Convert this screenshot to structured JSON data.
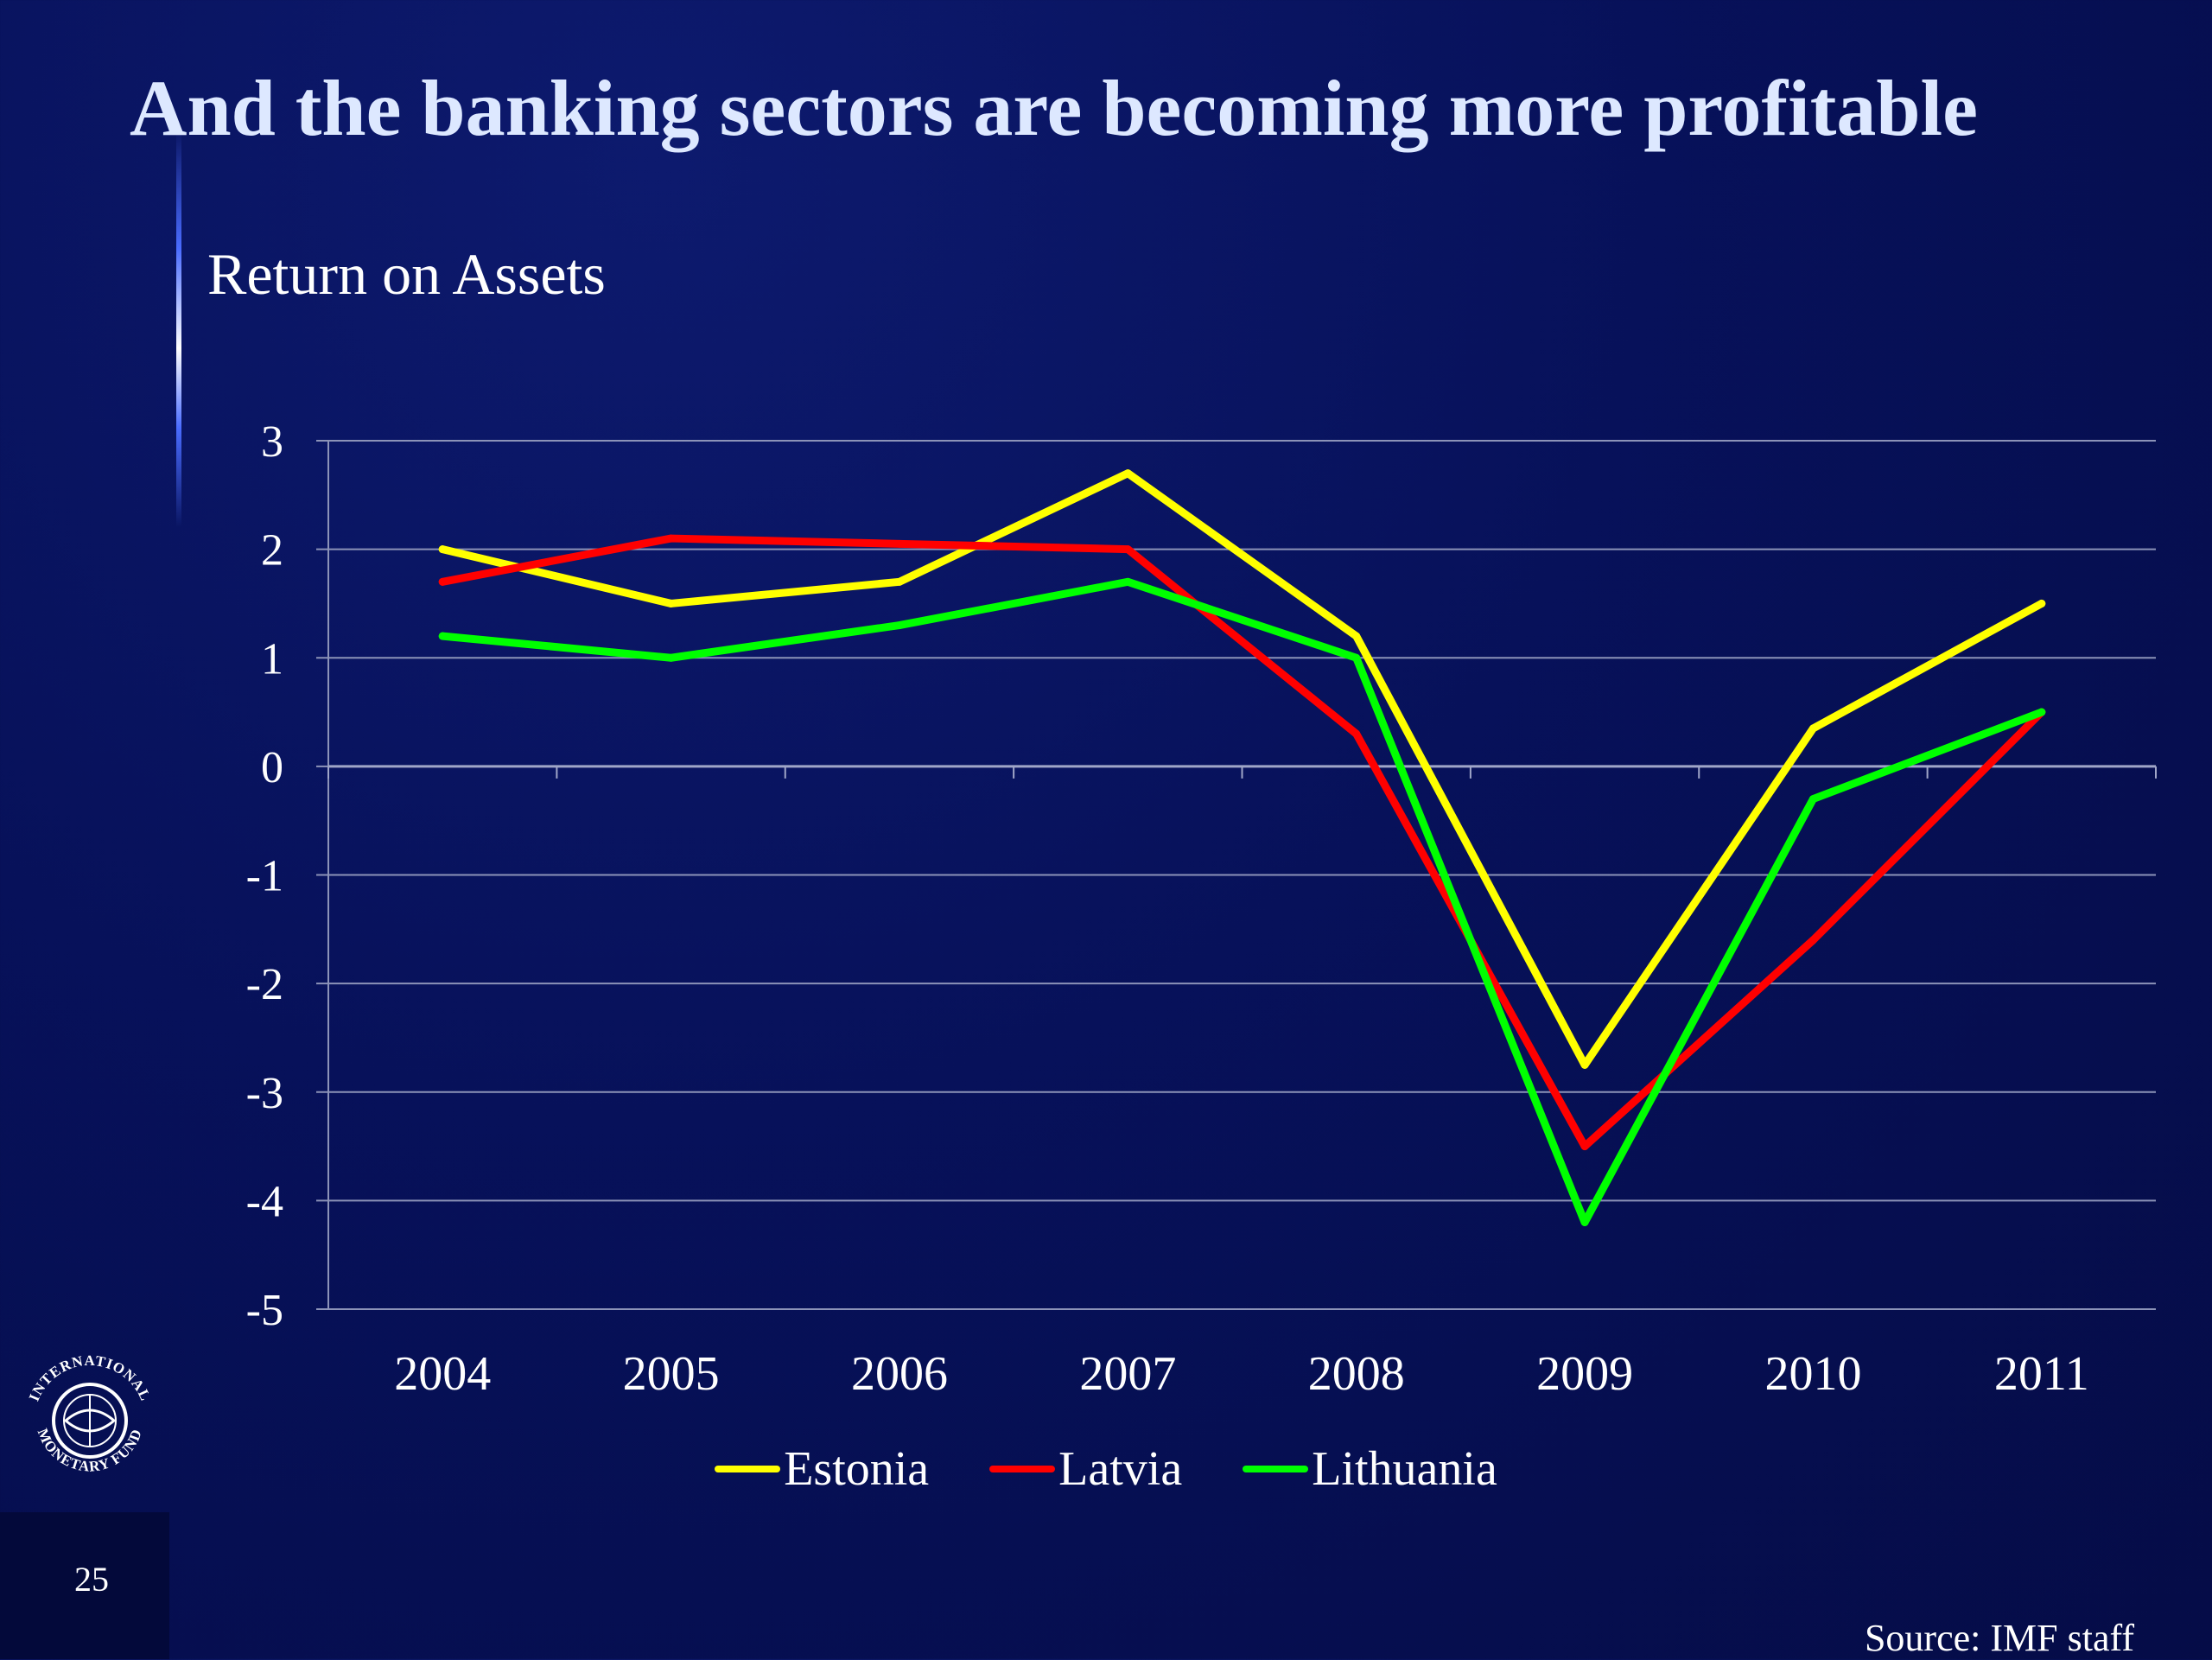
{
  "slide": {
    "title": "And the banking sectors are becoming more profitable",
    "page_number": "25",
    "source": "Source: IMF staff"
  },
  "logo": {
    "icon": "imf-seal-icon",
    "text": "INTERNATIONAL MONETARY FUND"
  },
  "chart_data": {
    "type": "line",
    "title": "Return on Assets",
    "xlabel": "",
    "ylabel": "",
    "categories": [
      "2004",
      "2005",
      "2006",
      "2007",
      "2008",
      "2009",
      "2010",
      "2011"
    ],
    "ylim": [
      -5,
      3
    ],
    "yticks": [
      "3",
      "2",
      "1",
      "0",
      "-1",
      "-2",
      "-3",
      "-4",
      "-5"
    ],
    "grid": true,
    "legend_position": "bottom",
    "series": [
      {
        "name": "Estonia",
        "color": "#ffff00",
        "values": [
          2.0,
          1.5,
          1.7,
          2.7,
          1.2,
          -2.75,
          0.35,
          1.5
        ]
      },
      {
        "name": "Latvia",
        "color": "#ff0000",
        "values": [
          1.7,
          2.1,
          2.05,
          2.0,
          0.3,
          -3.5,
          -1.6,
          0.5
        ]
      },
      {
        "name": "Lithuania",
        "color": "#00ff00",
        "values": [
          1.2,
          1.0,
          1.3,
          1.7,
          1.0,
          -4.2,
          -0.3,
          0.5
        ]
      }
    ]
  }
}
